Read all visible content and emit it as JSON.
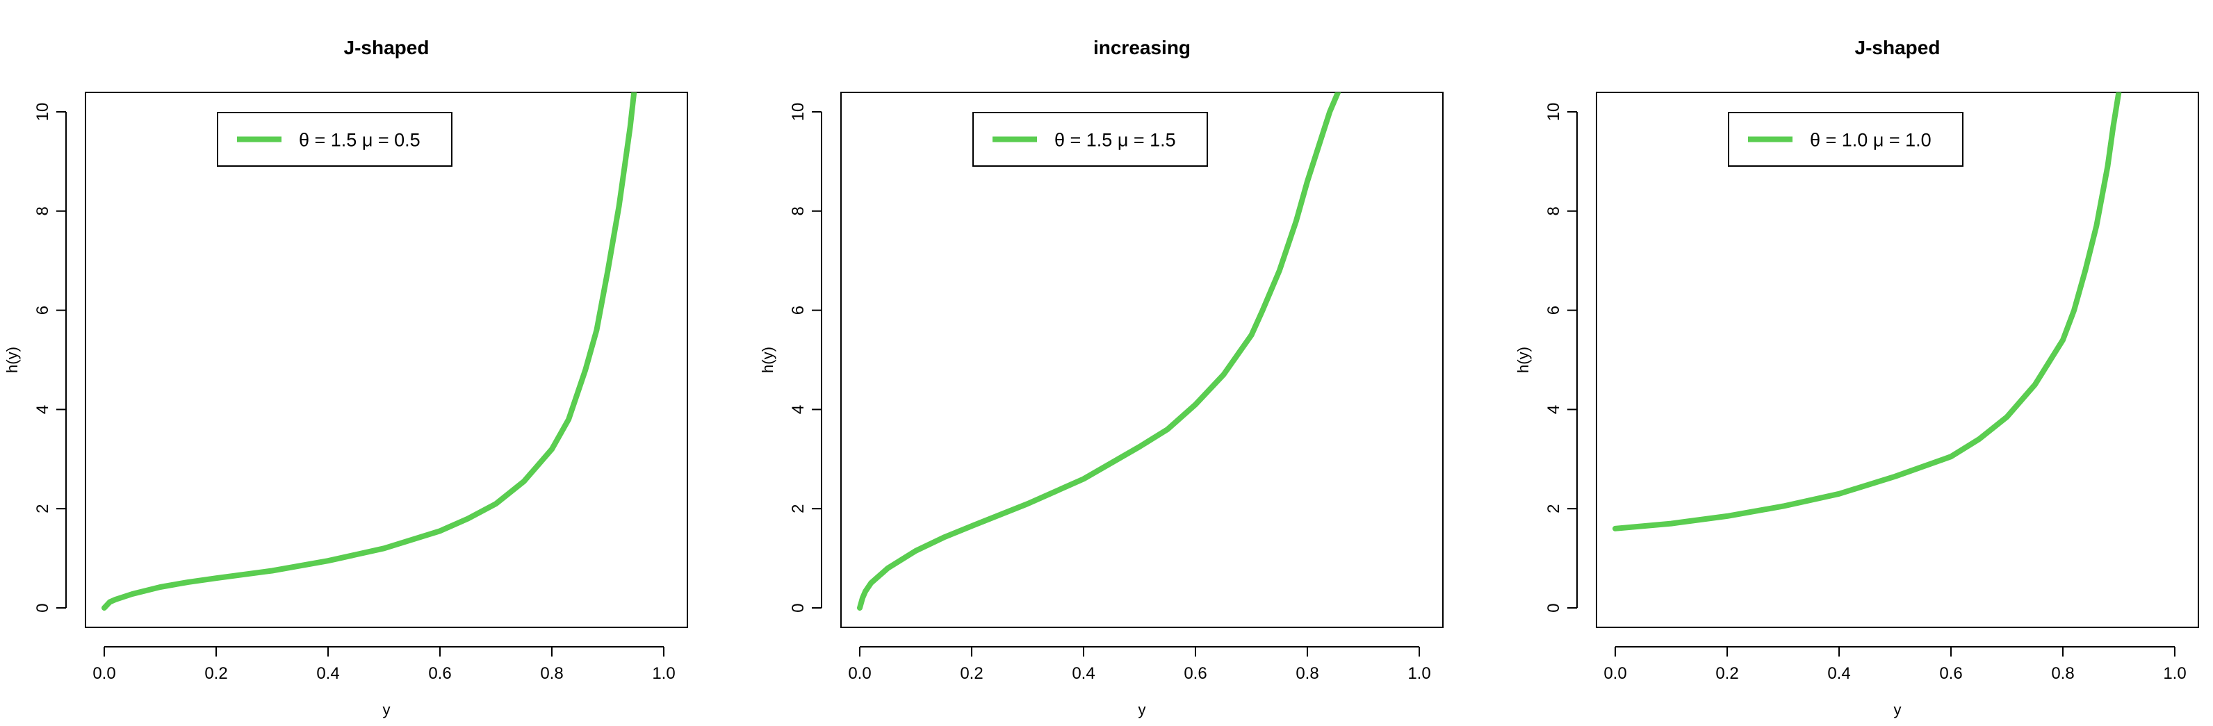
{
  "chart_data": [
    {
      "type": "line",
      "title": "J-shaped",
      "xlabel": "y",
      "ylabel": "h(y)",
      "xlim": [
        0,
        1
      ],
      "ylim": [
        0,
        10
      ],
      "xticks": [
        "0.0",
        "0.2",
        "0.4",
        "0.6",
        "0.8",
        "1.0"
      ],
      "yticks": [
        "0",
        "2",
        "4",
        "6",
        "8",
        "10"
      ],
      "grid": false,
      "legend_position": "top-center",
      "color": "#5ACD50",
      "series": [
        {
          "name": "θ = 1.5  μ = 0.5",
          "x": [
            0.0,
            0.01,
            0.02,
            0.05,
            0.1,
            0.15,
            0.2,
            0.3,
            0.4,
            0.5,
            0.6,
            0.65,
            0.7,
            0.75,
            0.8,
            0.83,
            0.86,
            0.88,
            0.9,
            0.92,
            0.93,
            0.94,
            0.947
          ],
          "y": [
            0.0,
            0.12,
            0.17,
            0.28,
            0.42,
            0.52,
            0.6,
            0.75,
            0.95,
            1.2,
            1.55,
            1.8,
            2.1,
            2.55,
            3.2,
            3.8,
            4.8,
            5.6,
            6.8,
            8.1,
            8.9,
            9.7,
            10.4
          ]
        }
      ]
    },
    {
      "type": "line",
      "title": "increasing",
      "xlabel": "y",
      "ylabel": "h(y)",
      "xlim": [
        0,
        1
      ],
      "ylim": [
        0,
        10
      ],
      "xticks": [
        "0.0",
        "0.2",
        "0.4",
        "0.6",
        "0.8",
        "1.0"
      ],
      "yticks": [
        "0",
        "2",
        "4",
        "6",
        "8",
        "10"
      ],
      "grid": false,
      "legend_position": "top-center",
      "color": "#5ACD50",
      "series": [
        {
          "name": "θ = 1.5  μ = 1.5",
          "x": [
            0.0,
            0.005,
            0.01,
            0.02,
            0.05,
            0.1,
            0.15,
            0.2,
            0.3,
            0.4,
            0.5,
            0.55,
            0.6,
            0.65,
            0.7,
            0.72,
            0.75,
            0.78,
            0.8,
            0.82,
            0.84,
            0.855
          ],
          "y": [
            0.0,
            0.2,
            0.33,
            0.5,
            0.8,
            1.15,
            1.42,
            1.65,
            2.1,
            2.6,
            3.25,
            3.6,
            4.1,
            4.7,
            5.5,
            6.0,
            6.8,
            7.8,
            8.6,
            9.3,
            10.0,
            10.4
          ]
        }
      ]
    },
    {
      "type": "line",
      "title": "J-shaped",
      "xlabel": "y",
      "ylabel": "h(y)",
      "xlim": [
        0,
        1
      ],
      "ylim": [
        0,
        10
      ],
      "xticks": [
        "0.0",
        "0.2",
        "0.4",
        "0.6",
        "0.8",
        "1.0"
      ],
      "yticks": [
        "0",
        "2",
        "4",
        "6",
        "8",
        "10"
      ],
      "grid": false,
      "legend_position": "top-center",
      "color": "#5ACD50",
      "series": [
        {
          "name": "θ = 1.0  μ = 1.0",
          "x": [
            0.0,
            0.1,
            0.2,
            0.3,
            0.4,
            0.5,
            0.6,
            0.65,
            0.7,
            0.75,
            0.8,
            0.82,
            0.84,
            0.86,
            0.88,
            0.89,
            0.9
          ],
          "y": [
            1.6,
            1.7,
            1.85,
            2.05,
            2.3,
            2.65,
            3.05,
            3.4,
            3.85,
            4.5,
            5.4,
            6.0,
            6.8,
            7.7,
            8.9,
            9.7,
            10.4
          ]
        }
      ]
    }
  ]
}
